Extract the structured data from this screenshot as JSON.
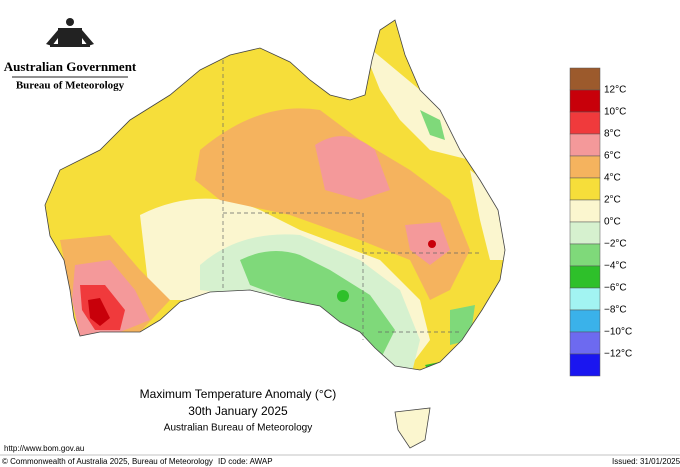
{
  "header": {
    "government": "Australian Government",
    "agency": "Bureau of Meteorology"
  },
  "map": {
    "title": "Maximum Temperature Anomaly (°C)",
    "date": "30th January 2025",
    "source": "Australian Bureau of Meteorology"
  },
  "legend": {
    "colors": [
      "#9c5a2c",
      "#c8000a",
      "#f03a3c",
      "#f4999a",
      "#f5b35e",
      "#f6de3a",
      "#fbf6cf",
      "#d6f1cf",
      "#7fd97a",
      "#2ec02a",
      "#a2f4f2",
      "#3ab2ea",
      "#6d6af0",
      "#1a16f0"
    ],
    "labels": [
      "12°C",
      "10°C",
      "8°C",
      "6°C",
      "4°C",
      "2°C",
      "0°C",
      "−2°C",
      "−4°C",
      "−6°C",
      "−8°C",
      "−10°C",
      "−12°C"
    ]
  },
  "footer": {
    "url": "http://www.bom.gov.au",
    "copyright": "© Commonwealth of Australia 2025, Bureau of Meteorology",
    "id_code": "ID code: AWAP",
    "issued": "Issued: 31/01/2025"
  }
}
